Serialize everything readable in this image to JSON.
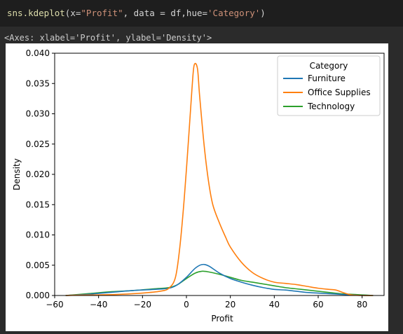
{
  "code_cell": {
    "func": "sns.kdeplot",
    "open_paren": "(",
    "arg_x_key": "x=",
    "arg_x_value": "\"Profit\"",
    "arg_data": ", data = df,hue=",
    "arg_hue_value": "'Category'",
    "close_paren": ")"
  },
  "output": {
    "repr": "<Axes: xlabel='Profit', ylabel='Density'>"
  },
  "colors": {
    "Furniture": "#1f77b4",
    "Office Supplies": "#ff7f0e",
    "Technology": "#2ca02c"
  },
  "chart_data": {
    "type": "line",
    "xlabel": "Profit",
    "ylabel": "Density",
    "xlim": [
      -60,
      90
    ],
    "ylim": [
      0,
      0.04
    ],
    "xticks": [
      -60,
      -40,
      -20,
      0,
      20,
      40,
      60,
      80
    ],
    "xtick_labels": [
      "−60",
      "−40",
      "−20",
      "0",
      "20",
      "40",
      "60",
      "80"
    ],
    "yticks": [
      0.0,
      0.005,
      0.01,
      0.015,
      0.02,
      0.025,
      0.03,
      0.035,
      0.04
    ],
    "ytick_labels": [
      "0.000",
      "0.005",
      "0.010",
      "0.015",
      "0.020",
      "0.025",
      "0.030",
      "0.035",
      "0.040"
    ],
    "grid": false,
    "legend": {
      "title": "Category",
      "placement": "top-right"
    },
    "series": [
      {
        "name": "Furniture",
        "points": [
          [
            -55,
            0
          ],
          [
            -45,
            0.0002
          ],
          [
            -35,
            0.0005
          ],
          [
            -25,
            0.0008
          ],
          [
            -15,
            0.001
          ],
          [
            -8,
            0.0012
          ],
          [
            -4,
            0.0018
          ],
          [
            0,
            0.003
          ],
          [
            4,
            0.0045
          ],
          [
            7,
            0.0051
          ],
          [
            10,
            0.0049
          ],
          [
            15,
            0.0037
          ],
          [
            20,
            0.0028
          ],
          [
            25,
            0.0022
          ],
          [
            30,
            0.0017
          ],
          [
            35,
            0.0013
          ],
          [
            40,
            0.001
          ],
          [
            45,
            0.0009
          ],
          [
            50,
            0.0007
          ],
          [
            55,
            0.0005
          ],
          [
            60,
            0.0004
          ],
          [
            65,
            0.0003
          ],
          [
            70,
            0.0002
          ],
          [
            75,
            0.0001
          ],
          [
            80,
            0
          ],
          [
            85,
            0
          ]
        ]
      },
      {
        "name": "Office Supplies",
        "points": [
          [
            -55,
            0
          ],
          [
            -50,
            5e-05
          ],
          [
            -40,
            0.0001
          ],
          [
            -30,
            0.0002
          ],
          [
            -20,
            0.0004
          ],
          [
            -12,
            0.0007
          ],
          [
            -8,
            0.0012
          ],
          [
            -5,
            0.003
          ],
          [
            -3,
            0.008
          ],
          [
            -1,
            0.016
          ],
          [
            1,
            0.026
          ],
          [
            2.5,
            0.034
          ],
          [
            3.5,
            0.038
          ],
          [
            5,
            0.0375
          ],
          [
            6,
            0.033
          ],
          [
            8,
            0.025
          ],
          [
            10,
            0.019
          ],
          [
            12,
            0.015
          ],
          [
            15,
            0.012
          ],
          [
            18,
            0.0095
          ],
          [
            20,
            0.008
          ],
          [
            25,
            0.0055
          ],
          [
            30,
            0.0038
          ],
          [
            35,
            0.0028
          ],
          [
            40,
            0.0022
          ],
          [
            45,
            0.002
          ],
          [
            50,
            0.0018
          ],
          [
            55,
            0.0015
          ],
          [
            60,
            0.0012
          ],
          [
            65,
            0.001
          ],
          [
            68,
            0.0009
          ],
          [
            72,
            0.0004
          ],
          [
            75,
            0.0001
          ],
          [
            80,
            0
          ],
          [
            85,
            0
          ]
        ]
      },
      {
        "name": "Technology",
        "points": [
          [
            -55,
            0
          ],
          [
            -45,
            0.0003
          ],
          [
            -35,
            0.0006
          ],
          [
            -25,
            0.0008
          ],
          [
            -15,
            0.0011
          ],
          [
            -8,
            0.0013
          ],
          [
            -4,
            0.0018
          ],
          [
            0,
            0.0028
          ],
          [
            4,
            0.0037
          ],
          [
            7,
            0.004
          ],
          [
            10,
            0.0039
          ],
          [
            15,
            0.0035
          ],
          [
            20,
            0.003
          ],
          [
            25,
            0.0025
          ],
          [
            30,
            0.0022
          ],
          [
            35,
            0.0019
          ],
          [
            40,
            0.0016
          ],
          [
            45,
            0.0013
          ],
          [
            50,
            0.0011
          ],
          [
            55,
            0.0009
          ],
          [
            60,
            0.0007
          ],
          [
            65,
            0.0005
          ],
          [
            70,
            0.0003
          ],
          [
            75,
            0.0002
          ],
          [
            80,
            0.0001
          ],
          [
            85,
            0
          ]
        ]
      }
    ]
  }
}
